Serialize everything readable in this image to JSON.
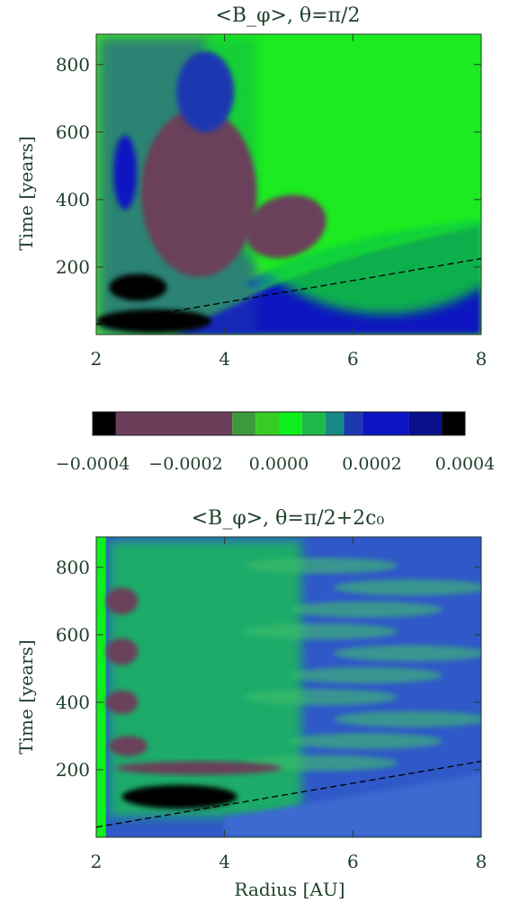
{
  "chart_data": [
    {
      "type": "heatmap",
      "title": "<B_φ>,  θ=π/2",
      "xlabel": "",
      "ylabel": "Time [years]",
      "xlim": [
        2,
        8
      ],
      "ylim": [
        0,
        890
      ],
      "xticks": [
        2,
        4,
        6,
        8
      ],
      "yticks": [
        200,
        400,
        600,
        800
      ],
      "xtick_labels": [
        "2",
        "4",
        "6",
        "8"
      ],
      "ytick_labels": [
        "200",
        "400",
        "600",
        "800"
      ],
      "dashed_line": {
        "x": [
          2.0,
          8.0
        ],
        "y": [
          30,
          225
        ]
      },
      "features": [
        {
          "kind": "ellipse",
          "cx": 4.95,
          "cy": 320,
          "rx": 0.65,
          "ry": 90,
          "value": -0.00025,
          "rotate": -18
        },
        {
          "kind": "ellipse",
          "cx": 2.65,
          "cy": 140,
          "rx": 0.45,
          "ry": 40,
          "value": -0.00038
        },
        {
          "kind": "ellipse",
          "cx": 2.9,
          "cy": 40,
          "rx": 0.9,
          "ry": 35,
          "value": -0.0004
        },
        {
          "kind": "ellipse",
          "cx": 2.45,
          "cy": 480,
          "rx": 0.18,
          "ry": 110,
          "value": 0.00025
        },
        {
          "kind": "ellipse",
          "cx": 3.6,
          "cy": 420,
          "rx": 0.9,
          "ry": 250,
          "value": -0.0001
        },
        {
          "kind": "ellipse",
          "cx": 3.7,
          "cy": 720,
          "rx": 0.45,
          "ry": 120,
          "value": 0.00015
        }
      ]
    },
    {
      "type": "colorbar",
      "tick_labels": [
        "−0.0004",
        "−0.0002",
        "0.0000",
        "0.0002",
        "0.0004"
      ],
      "tick_values": [
        -0.0004,
        -0.0002,
        0.0,
        0.0002,
        0.0004
      ],
      "levels": [
        {
          "from": -0.0004,
          "to": -0.00035,
          "color": "#000000"
        },
        {
          "from": -0.00035,
          "to": -0.0001,
          "color": "#6b3f5a"
        },
        {
          "from": -0.0001,
          "to": -5e-05,
          "color": "#3c9a3c"
        },
        {
          "from": -5e-05,
          "to": 0.0,
          "color": "#36cc24"
        },
        {
          "from": 0.0,
          "to": 5e-05,
          "color": "#0ef01e"
        },
        {
          "from": 5e-05,
          "to": 0.0001,
          "color": "#1fb84a"
        },
        {
          "from": 0.0001,
          "to": 0.00014,
          "color": "#178a88"
        },
        {
          "from": 0.00014,
          "to": 0.00018,
          "color": "#1c38b0"
        },
        {
          "from": 0.00018,
          "to": 0.00028,
          "color": "#0a14c0"
        },
        {
          "from": 0.00028,
          "to": 0.00035,
          "color": "#08108a"
        },
        {
          "from": 0.00035,
          "to": 0.0004,
          "color": "#000000"
        }
      ]
    },
    {
      "type": "heatmap",
      "title": "<B_φ>,  θ=π/2+2c₀",
      "xlabel": "Radius [AU]",
      "ylabel": "Time [years]",
      "xlim": [
        2,
        8
      ],
      "ylim": [
        0,
        890
      ],
      "xticks": [
        2,
        4,
        6,
        8
      ],
      "yticks": [
        200,
        400,
        600,
        800
      ],
      "xtick_labels": [
        "2",
        "4",
        "6",
        "8"
      ],
      "ytick_labels": [
        "200",
        "400",
        "600",
        "800"
      ],
      "dashed_line": {
        "x": [
          2.0,
          8.0
        ],
        "y": [
          30,
          225
        ]
      },
      "features": [
        {
          "kind": "ellipse",
          "cx": 3.3,
          "cy": 120,
          "rx": 0.9,
          "ry": 35,
          "value": -0.00038
        },
        {
          "kind": "ellipse",
          "cx": 3.6,
          "cy": 205,
          "rx": 1.3,
          "ry": 20,
          "value": -0.0003
        },
        {
          "kind": "ellipse",
          "cx": 2.4,
          "cy": 700,
          "rx": 0.25,
          "ry": 40,
          "value": -0.00025
        },
        {
          "kind": "ellipse",
          "cx": 2.4,
          "cy": 550,
          "rx": 0.25,
          "ry": 40,
          "value": -0.00025
        },
        {
          "kind": "ellipse",
          "cx": 2.4,
          "cy": 400,
          "rx": 0.25,
          "ry": 35,
          "value": -0.00025
        },
        {
          "kind": "ellipse",
          "cx": 2.5,
          "cy": 270,
          "rx": 0.3,
          "ry": 30,
          "value": -0.00025
        }
      ]
    }
  ]
}
